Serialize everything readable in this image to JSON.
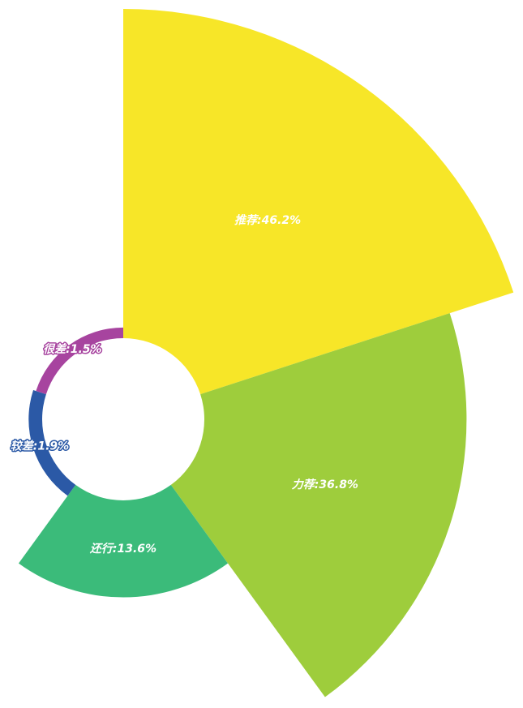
{
  "chart_data": {
    "type": "rose",
    "labels": [
      "推荐:46.2%",
      "力荐:36.8%",
      "还行:13.6%",
      "较差:1.9%",
      "很差:1.5%"
    ],
    "values": [
      46.2,
      36.8,
      13.6,
      1.9,
      1.5
    ],
    "colors": [
      "#f7e628",
      "#9ecd3c",
      "#3bbb7a",
      "#2b59a6",
      "#a7449f"
    ]
  }
}
